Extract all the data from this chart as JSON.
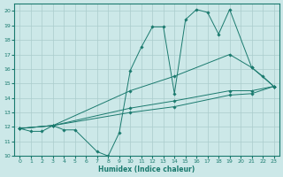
{
  "xlabel": "Humidex (Indice chaleur)",
  "xlim": [
    -0.5,
    23.5
  ],
  "ylim": [
    10,
    20.5
  ],
  "yticks": [
    10,
    11,
    12,
    13,
    14,
    15,
    16,
    17,
    18,
    19,
    20
  ],
  "xticks": [
    0,
    1,
    2,
    3,
    4,
    5,
    6,
    7,
    8,
    9,
    10,
    11,
    12,
    13,
    14,
    15,
    16,
    17,
    18,
    19,
    20,
    21,
    22,
    23
  ],
  "bg_color": "#cce8e8",
  "grid_color": "#aacccc",
  "line_color": "#1a7a6e",
  "lines": [
    {
      "x": [
        0,
        1,
        2,
        3,
        4,
        5,
        7,
        8,
        9,
        10,
        11,
        12,
        13,
        14,
        15,
        16,
        17,
        18,
        19,
        21,
        22,
        23
      ],
      "y": [
        11.9,
        11.7,
        11.7,
        12.1,
        11.8,
        11.8,
        10.3,
        10.0,
        11.6,
        15.9,
        17.5,
        18.9,
        18.9,
        14.3,
        19.4,
        20.1,
        19.9,
        18.4,
        20.1,
        16.1,
        15.5,
        14.8
      ]
    },
    {
      "x": [
        0,
        3,
        10,
        14,
        19,
        21,
        23
      ],
      "y": [
        11.9,
        12.1,
        14.5,
        15.5,
        17.0,
        16.1,
        14.8
      ]
    },
    {
      "x": [
        0,
        3,
        10,
        14,
        19,
        21,
        23
      ],
      "y": [
        11.9,
        12.1,
        13.3,
        13.8,
        14.5,
        14.5,
        14.8
      ]
    },
    {
      "x": [
        0,
        3,
        10,
        14,
        19,
        21,
        23
      ],
      "y": [
        11.9,
        12.1,
        13.0,
        13.4,
        14.2,
        14.3,
        14.8
      ]
    }
  ]
}
